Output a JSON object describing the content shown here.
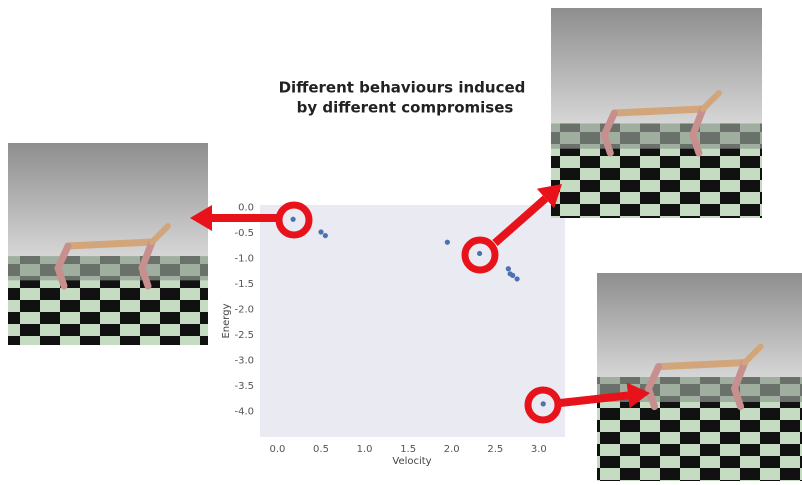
{
  "chart_data": {
    "type": "scatter",
    "title_lines": [
      "Different behaviours induced",
      "by different compromises"
    ],
    "x_label": "Velocity",
    "y_label": "Energy",
    "x": [
      0.18,
      0.5,
      0.55,
      1.95,
      2.32,
      2.65,
      2.67,
      2.7,
      2.75,
      3.05
    ],
    "series": [
      {
        "color": "#4c72b0",
        "values": [
          -0.23,
          -0.48,
          -0.55,
          -0.68,
          -0.9,
          -1.2,
          -1.3,
          -1.33,
          -1.4,
          -3.85
        ]
      }
    ],
    "xlim": [
      -0.2,
      3.3
    ],
    "ylim": [
      -4.5,
      0.05
    ],
    "xticks": [
      {
        "value": 0,
        "label": "0.0"
      },
      0.5,
      {
        "value": 1,
        "label": "1.0"
      },
      1.5,
      {
        "value": 2,
        "label": "2.0"
      },
      2.5,
      {
        "value": 3,
        "label": "3.0"
      }
    ],
    "yticks": [
      {
        "value": 0,
        "label": "0.0"
      },
      -0.5,
      {
        "value": -1,
        "label": "-1.0"
      },
      -1.5,
      {
        "value": -2,
        "label": "-2.0"
      },
      -2.5,
      {
        "value": -3,
        "label": "-3.0"
      },
      -3.5,
      {
        "value": -4,
        "label": "-4.0"
      }
    ],
    "grid": true
  }
}
